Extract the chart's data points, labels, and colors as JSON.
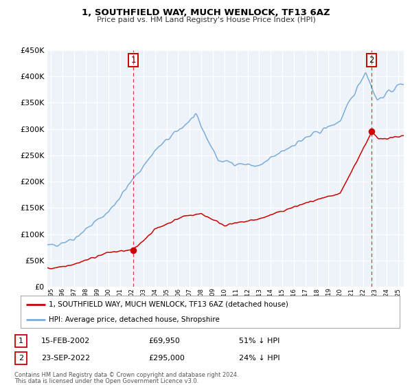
{
  "title": "1, SOUTHFIELD WAY, MUCH WENLOCK, TF13 6AZ",
  "subtitle": "Price paid vs. HM Land Registry's House Price Index (HPI)",
  "background_color": "#eef2f9",
  "legend_label_red": "1, SOUTHFIELD WAY, MUCH WENLOCK, TF13 6AZ (detached house)",
  "legend_label_blue": "HPI: Average price, detached house, Shropshire",
  "sale1_date": "15-FEB-2002",
  "sale1_price": "£69,950",
  "sale1_hpi": "51% ↓ HPI",
  "sale1_year": 2002.12,
  "sale1_value": 69950,
  "sale2_date": "23-SEP-2022",
  "sale2_price": "£295,000",
  "sale2_hpi": "24% ↓ HPI",
  "sale2_year": 2022.72,
  "sale2_value": 295000,
  "footnote1": "Contains HM Land Registry data © Crown copyright and database right 2024.",
  "footnote2": "This data is licensed under the Open Government Licence v3.0.",
  "ylim": [
    0,
    450000
  ],
  "xlim_start": 1994.7,
  "xlim_end": 2025.5,
  "red_color": "#cc0000",
  "blue_color": "#7aaddb",
  "vline_color": "#cc0000",
  "grid_color": "#ffffff",
  "spine_color": "#cccccc"
}
